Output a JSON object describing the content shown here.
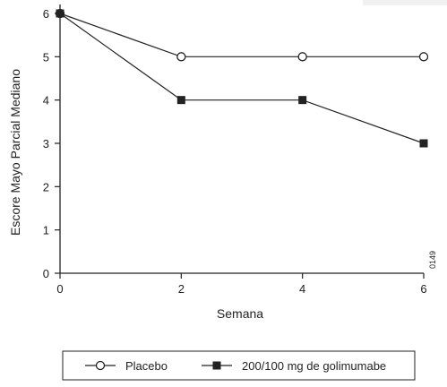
{
  "chart_data": {
    "type": "line",
    "x": [
      0,
      2,
      4,
      6
    ],
    "series": [
      {
        "name": "Placebo",
        "values": [
          6,
          5,
          5,
          5
        ],
        "marker": "open-circle"
      },
      {
        "name": "200/100 mg de golimumabe",
        "values": [
          6,
          4,
          4,
          3
        ],
        "marker": "filled-square"
      }
    ],
    "xlabel": "Semana",
    "ylabel": "Escore Mayo Parcial Mediano",
    "xticks": [
      0,
      2,
      4,
      6
    ],
    "yticks": [
      0,
      1,
      2,
      3,
      4,
      5,
      6
    ],
    "xlim": [
      0,
      6
    ],
    "ylim": [
      0,
      6
    ],
    "grid": false,
    "legend_position": "bottom",
    "figure_code": "0149",
    "colors": {
      "line": "#222222",
      "marker_fill_open": "#ffffff",
      "marker_fill_solid": "#222222"
    }
  }
}
